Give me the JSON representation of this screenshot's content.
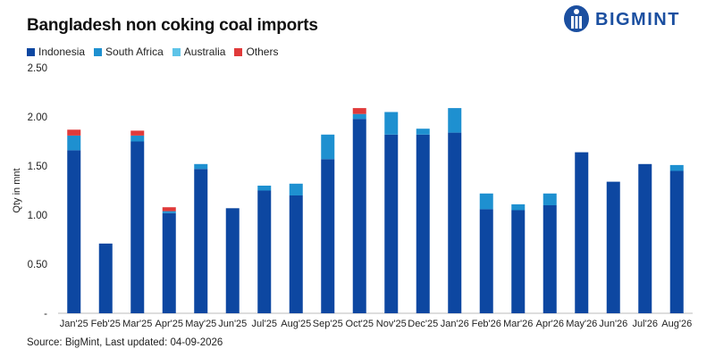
{
  "header": {
    "title": "Bangladesh non coking coal imports",
    "logo_text": "BIGMINT"
  },
  "footer": {
    "source": "Source: BigMint, Last updated: 04-09-2026"
  },
  "colors": {
    "Indonesia": "#0d47a1",
    "South Africa": "#1e90d0",
    "Australia": "#5ec4e8",
    "Others": "#e03a3a",
    "logo": "#1b4fa0"
  },
  "chart_data": {
    "type": "bar",
    "stacked": true,
    "title": "Bangladesh non coking coal imports",
    "xlabel": "",
    "ylabel": "Qty in mnt",
    "ylim": [
      0,
      2.5
    ],
    "yticks": [
      "-",
      "0.50",
      "1.00",
      "1.50",
      "2.00",
      "2.50"
    ],
    "grid": false,
    "legend_position": "top-left",
    "categories": [
      "Jan'25",
      "Feb'25",
      "Mar'25",
      "Apr'25",
      "May'25",
      "Jun'25",
      "Jul'25",
      "Aug'25",
      "Sep'25",
      "Oct'25",
      "Nov'25",
      "Dec'25",
      "Jan'26",
      "Feb'26",
      "Mar'26",
      "Apr'26",
      "May'26",
      "Jun'26",
      "Jul'26",
      "Aug'26"
    ],
    "series": [
      {
        "name": "Indonesia",
        "values": [
          1.66,
          0.71,
          1.75,
          1.02,
          1.47,
          1.07,
          1.25,
          1.2,
          1.57,
          1.98,
          1.82,
          1.82,
          1.84,
          1.06,
          1.05,
          1.1,
          1.64,
          1.34,
          1.52,
          1.45
        ]
      },
      {
        "name": "South Africa",
        "values": [
          0.15,
          0,
          0.06,
          0.02,
          0.05,
          0,
          0.05,
          0.12,
          0.25,
          0.05,
          0.23,
          0.06,
          0.25,
          0.16,
          0.06,
          0.12,
          0,
          0,
          0,
          0.06
        ]
      },
      {
        "name": "Australia",
        "values": [
          0,
          0,
          0,
          0,
          0,
          0,
          0,
          0,
          0,
          0,
          0,
          0,
          0,
          0,
          0,
          0,
          0,
          0,
          0,
          0
        ]
      },
      {
        "name": "Others",
        "values": [
          0.06,
          0,
          0.05,
          0.04,
          0,
          0,
          0,
          0,
          0,
          0.06,
          0,
          0,
          0,
          0,
          0,
          0,
          0,
          0,
          0,
          0
        ]
      }
    ]
  }
}
